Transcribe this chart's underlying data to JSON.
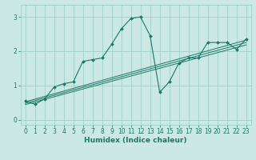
{
  "xlabel": "Humidex (Indice chaleur)",
  "bg_color": "#cce8e4",
  "grid_color": "#99ccc6",
  "line_color": "#1a7868",
  "xlim": [
    -0.5,
    23.5
  ],
  "ylim": [
    -0.15,
    3.35
  ],
  "xticks": [
    0,
    1,
    2,
    3,
    4,
    5,
    6,
    7,
    8,
    9,
    10,
    11,
    12,
    13,
    14,
    15,
    16,
    17,
    18,
    19,
    20,
    21,
    22,
    23
  ],
  "yticks": [
    0,
    1,
    2,
    3
  ],
  "main_series": [
    0.55,
    0.45,
    0.6,
    0.95,
    1.05,
    1.1,
    1.7,
    1.75,
    1.8,
    2.2,
    2.65,
    2.95,
    3.0,
    2.45,
    0.8,
    1.1,
    1.65,
    1.8,
    1.8,
    2.25,
    2.25,
    2.25,
    2.05,
    2.35
  ],
  "linear_lines": [
    {
      "x0": 0,
      "y0": 0.52,
      "x1": 23,
      "y1": 2.32
    },
    {
      "x0": 0,
      "y0": 0.48,
      "x1": 23,
      "y1": 2.25
    },
    {
      "x0": 0,
      "y0": 0.44,
      "x1": 23,
      "y1": 2.18
    }
  ]
}
